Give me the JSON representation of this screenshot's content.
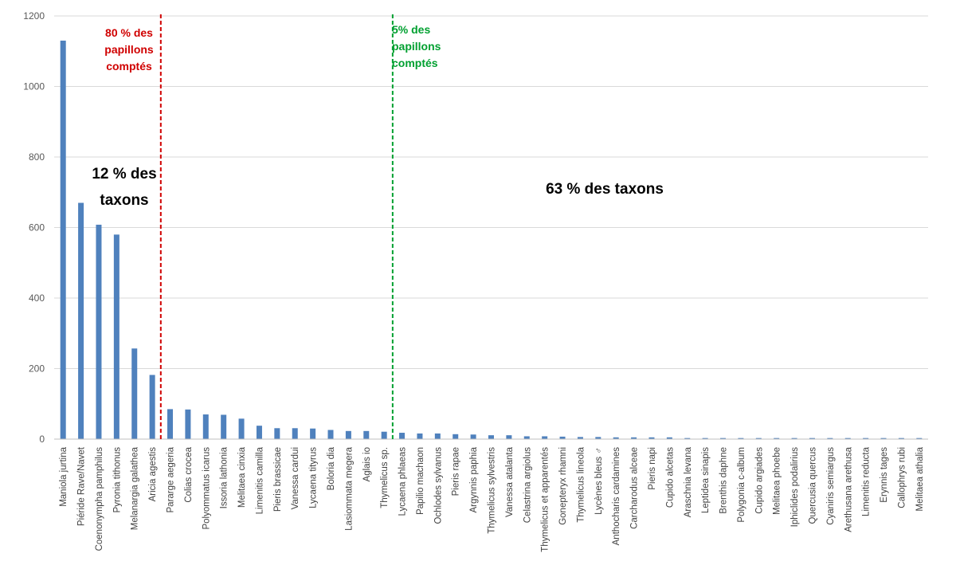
{
  "chart_data": {
    "type": "bar",
    "title": "",
    "xlabel": "",
    "ylabel": "",
    "ylim": [
      0,
      1200
    ],
    "yticks": [
      0,
      200,
      400,
      600,
      800,
      1000,
      1200
    ],
    "grid": true,
    "bar_color": "#4f81bd",
    "categories": [
      "Maniola jurtina",
      "Piéride Rave/Navet",
      "Coenonympha pamphilus",
      "Pyronia tithonus",
      "Melanargia galathea",
      "Aricia agestis",
      "Pararge aegeria",
      "Colias crocea",
      "Polyommatus icarus",
      "Issoria lathonia",
      "Melitaea cinxia",
      "Limenitis camilla",
      "Pieris brassicae",
      "Vanessa cardui",
      "Lycaena tityrus",
      "Boloria dia",
      "Lasiommata megera",
      "Aglais io",
      "Thymelicus sp.",
      "Lycaena phlaeas",
      "Papilio machaon",
      "Ochlodes sylvanus",
      "Pieris rapae",
      "Argynnis paphia",
      "Thymelicus sylvestris",
      "Vanessa atalanta",
      "Celastrina argiolus",
      "Thymelicus et apparentés",
      "Gonepteryx rhamni",
      "Thymelicus lineola",
      "Lycènes bleus ♂",
      "Anthocharis cardamines",
      "Carcharodus alceae",
      "Pieris napi",
      "Cupido alcetas",
      "Araschnia levana",
      "Leptidea sinapis",
      "Brenthis daphne",
      "Polygonia c-album",
      "Cupido argiades",
      "Melitaea phoebe",
      "Iphiclides podalirius",
      "Quercusia quercus",
      "Cyaniris semiargus",
      "Arethusana arethusa",
      "Limenitis reducta",
      "Erynnis tages",
      "Callophrys rubi",
      "Melitaea athalia"
    ],
    "values": [
      1130,
      670,
      608,
      580,
      257,
      182,
      85,
      84,
      70,
      69,
      58,
      38,
      31,
      31,
      30,
      26,
      23,
      23,
      21,
      18,
      16,
      16,
      14,
      13,
      11,
      11,
      8,
      8,
      7,
      6,
      6,
      5,
      5,
      5,
      5,
      3,
      3,
      3,
      3,
      3,
      3,
      3,
      3,
      3,
      3,
      3,
      3,
      3,
      3
    ],
    "divider_lines": [
      {
        "after_index": 5,
        "color": "#d00000",
        "style": "dashed"
      },
      {
        "after_index": 18,
        "color": "#00a030",
        "style": "dashed"
      }
    ]
  },
  "annotations": {
    "red_label": [
      "80 % des",
      "papillons",
      "comptés"
    ],
    "red_color": "#d00000",
    "green_label": [
      "5% des",
      "papillons",
      "comptés"
    ],
    "green_color": "#00a030",
    "left_taxa": [
      "12 % des",
      "taxons"
    ],
    "right_taxa": "63 % des taxons"
  }
}
